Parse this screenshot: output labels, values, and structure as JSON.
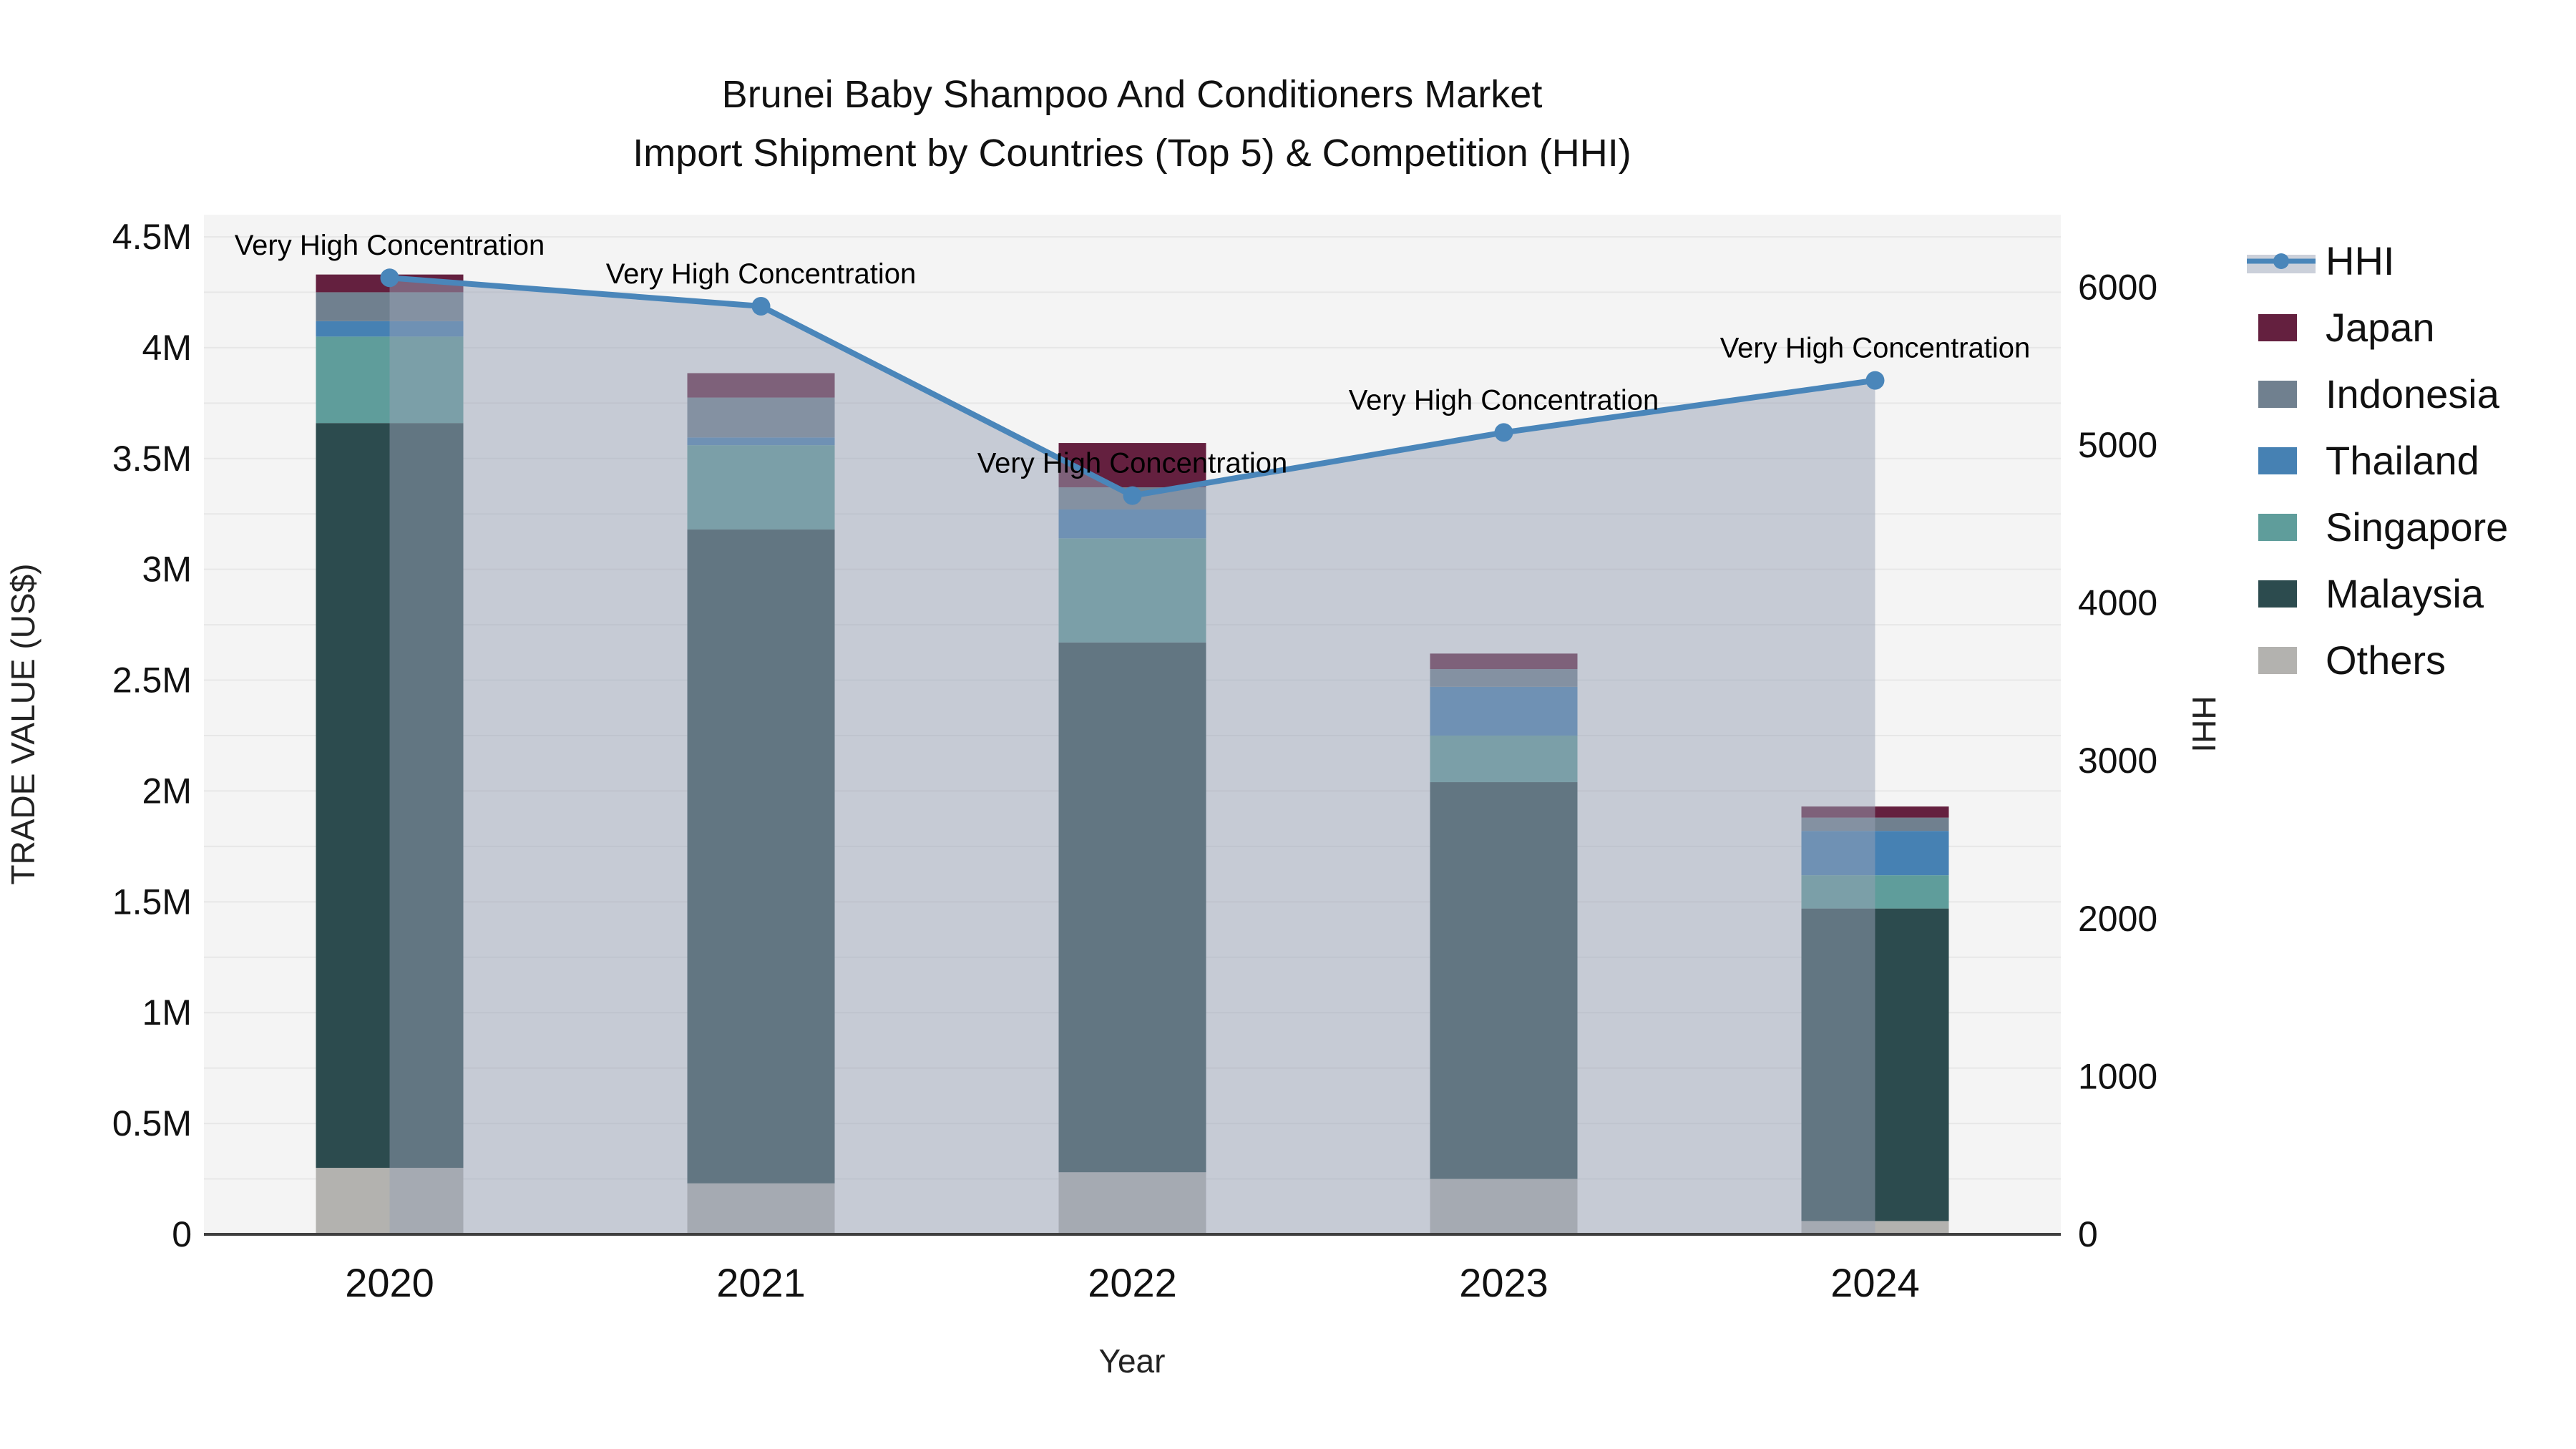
{
  "figure": {
    "title_line1": "Brunei Baby Shampoo And Conditioners Market",
    "title_line2": "Import Shipment by Countries (Top 5) & Competition (HHI)"
  },
  "chart_data": {
    "type": "bar",
    "subtype": "stacked-bars-with-line-area",
    "title": "Brunei Baby Shampoo And Conditioners Market Import Shipment by Countries (Top 5) & Competition (HHI)",
    "categories": [
      "2020",
      "2021",
      "2022",
      "2023",
      "2024"
    ],
    "xlabel": "Year",
    "ylabel_left": "TRADE VALUE (US$)",
    "ylabel_right": "HHI",
    "values_unit": "million US$",
    "stack_series": [
      {
        "name": "Others",
        "color": "#B3B2AF",
        "values": [
          0.3,
          0.23,
          0.28,
          0.25,
          0.06
        ]
      },
      {
        "name": "Malaysia",
        "color": "#2C4B4E",
        "values": [
          3.36,
          2.95,
          2.39,
          1.79,
          1.41
        ]
      },
      {
        "name": "Singapore",
        "color": "#5F9D9B",
        "values": [
          0.39,
          0.38,
          0.47,
          0.21,
          0.15
        ]
      },
      {
        "name": "Thailand",
        "color": "#4681B3",
        "values": [
          0.07,
          0.035,
          0.13,
          0.22,
          0.2
        ]
      },
      {
        "name": "Indonesia",
        "color": "#70808F",
        "values": [
          0.13,
          0.18,
          0.1,
          0.08,
          0.06
        ]
      },
      {
        "name": "Japan",
        "color": "#64203F",
        "values": [
          0.08,
          0.11,
          0.2,
          0.07,
          0.05
        ]
      }
    ],
    "bar_totals": [
      4.33,
      3.885,
      3.57,
      2.62,
      1.93
    ],
    "line_series": {
      "name": "HHI",
      "color": "#4A86BA",
      "fill_color": "rgba(151,161,182,0.5)",
      "values": [
        6060,
        5880,
        4680,
        5080,
        5410
      ]
    },
    "annotations": [
      "Very High Concentration",
      "Very High Concentration",
      "Very High Concentration",
      "Very High Concentration",
      "Very High Concentration"
    ],
    "y_left": {
      "min": 0,
      "max": 4.6,
      "tick_values": [
        0,
        0.5,
        1,
        1.5,
        2,
        2.5,
        3,
        3.5,
        4,
        4.5
      ],
      "tick_labels": [
        "0",
        "0.5M",
        "1M",
        "1.5M",
        "2M",
        "2.5M",
        "3M",
        "3.5M",
        "4M",
        "4.5M"
      ]
    },
    "y_right": {
      "min": 0,
      "max": 6460,
      "tick_values": [
        0,
        1000,
        2000,
        3000,
        4000,
        5000,
        6000
      ],
      "tick_labels": [
        "0",
        "1000",
        "2000",
        "3000",
        "4000",
        "5000",
        "6000"
      ]
    },
    "grid": true,
    "grid_step": 0.25,
    "legend_position": "right",
    "legend_order": [
      "HHI",
      "Japan",
      "Indonesia",
      "Thailand",
      "Singapore",
      "Malaysia",
      "Others"
    ],
    "colors": {
      "plot_background": "#F4F4F4",
      "grid_line": "#E7E7E7",
      "axis_line": "#3F3F3F",
      "hhi_line": "#4A86BA",
      "hhi_fill": "rgba(151,161,182,0.5)"
    }
  }
}
